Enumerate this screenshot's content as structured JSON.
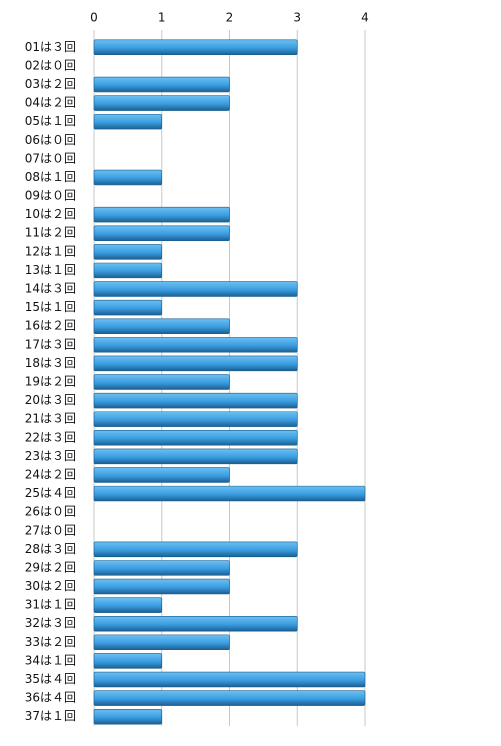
{
  "chart_data": {
    "type": "hbar",
    "categories": [
      "01は３回",
      "02は０回",
      "03は２回",
      "04は２回",
      "05は１回",
      "06は０回",
      "07は０回",
      "08は１回",
      "09は０回",
      "10は２回",
      "11は２回",
      "12は１回",
      "13は１回",
      "14は３回",
      "15は１回",
      "16は２回",
      "17は３回",
      "18は３回",
      "19は２回",
      "20は３回",
      "21は３回",
      "22は３回",
      "23は３回",
      "24は２回",
      "25は４回",
      "26は０回",
      "27は０回",
      "28は３回",
      "29は２回",
      "30は２回",
      "31は１回",
      "32は３回",
      "33は２回",
      "34は１回",
      "35は４回",
      "36は４回",
      "37は１回"
    ],
    "values": [
      3,
      0,
      2,
      2,
      1,
      0,
      0,
      1,
      0,
      2,
      2,
      1,
      1,
      3,
      1,
      2,
      3,
      3,
      2,
      3,
      3,
      3,
      3,
      2,
      4,
      0,
      0,
      3,
      2,
      2,
      1,
      3,
      2,
      1,
      4,
      4,
      1
    ],
    "color": "#3a9de0",
    "xlim": [
      0,
      4
    ],
    "xticks": [
      0,
      1,
      2,
      3,
      4
    ],
    "grid": true
  }
}
